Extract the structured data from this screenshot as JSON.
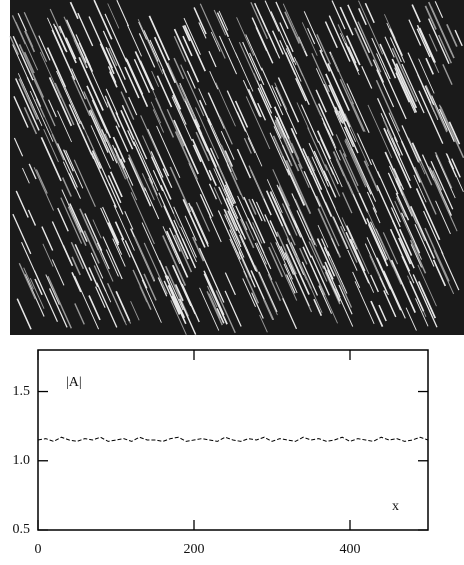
{
  "chart_data": {
    "type": "line",
    "ylabel": "|A|",
    "xlabel": "x",
    "x": [
      0,
      10,
      20,
      30,
      40,
      50,
      60,
      70,
      80,
      90,
      100,
      110,
      120,
      130,
      140,
      150,
      160,
      170,
      180,
      190,
      200,
      210,
      220,
      230,
      240,
      250,
      260,
      270,
      280,
      290,
      300,
      310,
      320,
      330,
      340,
      350,
      360,
      370,
      380,
      390,
      400,
      410,
      420,
      430,
      440,
      450,
      460,
      470,
      480,
      490,
      500
    ],
    "values": [
      1.15,
      1.16,
      1.14,
      1.17,
      1.15,
      1.14,
      1.16,
      1.15,
      1.17,
      1.14,
      1.15,
      1.16,
      1.14,
      1.17,
      1.15,
      1.15,
      1.14,
      1.16,
      1.17,
      1.14,
      1.15,
      1.16,
      1.15,
      1.14,
      1.17,
      1.15,
      1.14,
      1.16,
      1.15,
      1.17,
      1.14,
      1.16,
      1.15,
      1.14,
      1.17,
      1.15,
      1.16,
      1.14,
      1.15,
      1.17,
      1.14,
      1.16,
      1.15,
      1.14,
      1.17,
      1.15,
      1.16,
      1.14,
      1.15,
      1.17,
      1.15
    ],
    "color": "#000000",
    "xlim": [
      0,
      500
    ],
    "ylim": [
      0.5,
      1.8
    ],
    "xticks": [
      0,
      200,
      400
    ],
    "yticks": [
      0.5,
      {
        "value": 1,
        "label": "1.0"
      },
      1.5
    ]
  }
}
